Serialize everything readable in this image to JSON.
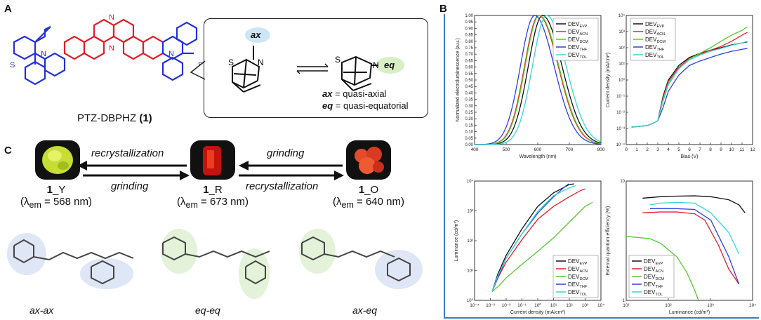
{
  "panels": {
    "A": "A",
    "B": "B",
    "C": "C"
  },
  "molecule": {
    "name": "PTZ-DBPHZ",
    "number": "(1)",
    "atoms": {
      "N": "N",
      "S": "S"
    }
  },
  "conformer_box": {
    "ax_tag": "ax",
    "eq_tag": "eq",
    "legend_ax_key": "ax",
    "legend_ax_text": "= quasi-axial",
    "legend_eq_key": "eq",
    "legend_eq_text": "= quasi-equatorial"
  },
  "charts": {
    "el_spectra": {
      "ylabel": "Normalized electroluminescence (a.u.)",
      "xlabel": "Wavelength (nm)",
      "xticks": [
        "400",
        "500",
        "600",
        "700",
        "800"
      ],
      "yticks": [
        "0.00",
        "0.05",
        "0.10",
        "0.15",
        "0.20",
        "0.25",
        "0.30",
        "0.35",
        "0.40",
        "0.45",
        "0.50",
        "0.55",
        "0.60",
        "0.65",
        "0.70",
        "0.75",
        "0.80",
        "0.85",
        "0.90",
        "0.95",
        "1.00"
      ]
    },
    "jv": {
      "ylabel": "Current density (mA/cm²)",
      "xlabel": "Bias (V)",
      "xticks": [
        "0",
        "1",
        "2",
        "3",
        "4",
        "5",
        "6",
        "7",
        "8",
        "9",
        "10",
        "11",
        "12"
      ],
      "yticks": [
        "10⁴",
        "10³",
        "10²",
        "10¹",
        "10⁰",
        "10⁻¹",
        "10⁻²",
        "10⁻³",
        "10⁻⁴"
      ]
    },
    "lj": {
      "ylabel": "Luminance (cd/m²)",
      "xlabel": "Current density (mA/cm²)",
      "xticks": [
        "10⁻⁴",
        "10⁻³",
        "10⁻²",
        "10⁻¹",
        "10⁰",
        "10¹",
        "10²",
        "10³",
        "10⁴"
      ],
      "yticks": [
        "10⁴",
        "10³",
        "10²",
        "10¹",
        "10⁰"
      ]
    },
    "eqe": {
      "ylabel": "External quantum efficiency (%)",
      "xlabel": "Luminance (cd/m²)",
      "xticks": [
        "10¹",
        "10²",
        "10³",
        "10⁴"
      ],
      "yticks": [
        "10",
        "1"
      ]
    },
    "legend": [
      {
        "base": "DEV",
        "sub": "EVP",
        "color": "#111111"
      },
      {
        "base": "DEV",
        "sub": "ACN",
        "color": "#e8202a"
      },
      {
        "base": "DEV",
        "sub": "DCM",
        "color": "#55cc2e"
      },
      {
        "base": "DEV",
        "sub": "THF",
        "color": "#2f3fe0"
      },
      {
        "base": "DEV",
        "sub": "TOL",
        "color": "#3ad6d6"
      }
    ]
  },
  "chart_data": [
    {
      "type": "line",
      "xlabel": "Wavelength (nm)",
      "ylabel": "Normalized electroluminescence (a.u.)",
      "xlim": [
        400,
        800
      ],
      "ylim": [
        0,
        1.0
      ],
      "series": [
        {
          "name": "DEV_EVP",
          "peak": 615
        },
        {
          "name": "DEV_ACN",
          "peak": 603
        },
        {
          "name": "DEV_DCM",
          "peak": 605
        },
        {
          "name": "DEV_THF",
          "peak": 590
        },
        {
          "name": "DEV_TOL",
          "peak": 628
        }
      ]
    },
    {
      "type": "line",
      "xlabel": "Bias (V)",
      "ylabel": "Current density (mA/cm²)",
      "xlim": [
        0,
        12
      ],
      "ylog": true,
      "ylim": [
        0.0001,
        10000
      ],
      "x": [
        0.5,
        1,
        2,
        2.5,
        3,
        3.5,
        4,
        5,
        6,
        7,
        8,
        9,
        10,
        11,
        11.5
      ],
      "series": [
        {
          "name": "DEV_EVP",
          "values": [
            0.0012,
            0.0013,
            0.0015,
            0.002,
            0.003,
            0.1,
            1,
            8,
            25,
            45,
            70,
            100,
            150,
            200,
            230
          ]
        },
        {
          "name": "DEV_ACN",
          "values": [
            0.0012,
            0.0013,
            0.0015,
            0.002,
            0.003,
            0.08,
            0.8,
            6,
            22,
            40,
            70,
            120,
            250,
            600,
            900
          ]
        },
        {
          "name": "DEV_DCM",
          "values": [
            0.0012,
            0.0013,
            0.0015,
            0.002,
            0.003,
            0.05,
            0.5,
            5,
            20,
            45,
            100,
            250,
            600,
            1200,
            2000
          ]
        },
        {
          "name": "DEV_THF",
          "values": [
            0.0012,
            0.0013,
            0.0015,
            0.002,
            0.003,
            0.02,
            0.2,
            2,
            8,
            15,
            25,
            40,
            60,
            80,
            90
          ]
        },
        {
          "name": "DEV_TOL",
          "values": [
            0.0012,
            0.0013,
            0.0015,
            0.002,
            0.003,
            0.06,
            0.6,
            5,
            18,
            35,
            60,
            90,
            140,
            200,
            250
          ]
        }
      ]
    },
    {
      "type": "line",
      "xlabel": "Current density (mA/cm²)",
      "ylabel": "Luminance (cd/m²)",
      "xlog": true,
      "ylog": true,
      "xlim": [
        0.0001,
        10000
      ],
      "ylim": [
        0.2,
        40000
      ],
      "series": [
        {
          "name": "DEV_EVP",
          "x": [
            0.0013,
            0.003,
            0.01,
            0.1,
            1,
            10,
            100,
            200
          ],
          "values": [
            0.5,
            3,
            20,
            300,
            3000,
            12000,
            28000,
            30000
          ]
        },
        {
          "name": "DEV_ACN",
          "x": [
            0.0013,
            0.003,
            0.01,
            0.1,
            1,
            10,
            100,
            500,
            1000
          ],
          "values": [
            0.5,
            2,
            10,
            100,
            800,
            3000,
            8000,
            15000,
            18000
          ]
        },
        {
          "name": "DEV_DCM",
          "x": [
            0.0013,
            0.003,
            0.01,
            0.1,
            1,
            10,
            100,
            1000,
            3000
          ],
          "values": [
            0.5,
            0.8,
            2,
            8,
            30,
            120,
            600,
            3000,
            4500
          ]
        },
        {
          "name": "DEV_THF",
          "x": [
            0.0013,
            0.003,
            0.01,
            0.1,
            1,
            10,
            50,
            90
          ],
          "values": [
            0.5,
            2,
            15,
            180,
            1500,
            8000,
            22000,
            30000
          ]
        },
        {
          "name": "DEV_TOL",
          "x": [
            0.0013,
            0.003,
            0.01,
            0.1,
            1,
            10,
            100,
            250
          ],
          "values": [
            0.5,
            2.5,
            15,
            180,
            1800,
            9000,
            20000,
            25000
          ]
        }
      ]
    },
    {
      "type": "line",
      "xlabel": "Luminance (cd/m²)",
      "ylabel": "External quantum efficiency (%)",
      "xlog": true,
      "ylog": true,
      "xlim": [
        10,
        50000
      ],
      "ylim": [
        1,
        20
      ],
      "series": [
        {
          "name": "DEV_EVP",
          "x": [
            30,
            100,
            300,
            1000,
            3000,
            10000,
            20000,
            30000
          ],
          "values": [
            13,
            13.5,
            13.7,
            13.8,
            13.5,
            12.5,
            11,
            9
          ]
        },
        {
          "name": "DEV_ACN",
          "x": [
            30,
            100,
            300,
            1000,
            2000,
            5000,
            10000,
            20000
          ],
          "values": [
            9,
            9.2,
            9.2,
            8.8,
            7.5,
            4,
            2.2,
            1.5
          ]
        },
        {
          "name": "DEV_DCM",
          "x": [
            10,
            50,
            100,
            300,
            600,
            1000,
            1300
          ],
          "values": [
            5,
            4.7,
            4.2,
            3,
            2,
            1.3,
            1
          ]
        },
        {
          "name": "DEV_THF",
          "x": [
            50,
            100,
            300,
            1000,
            3000,
            10000,
            20000
          ],
          "values": [
            10,
            10,
            10,
            9.8,
            7.5,
            3,
            1.5
          ]
        },
        {
          "name": "DEV_TOL",
          "x": [
            50,
            100,
            300,
            1000,
            3000,
            10000,
            20000
          ],
          "values": [
            11,
            11.5,
            11.7,
            11.5,
            9,
            5.5,
            3.2
          ]
        }
      ]
    }
  ],
  "arrows": {
    "y_to_r_top": "recrystallization",
    "y_to_r_bottom": "grinding",
    "r_to_o_top": "grinding",
    "r_to_o_bottom": "recrystallization"
  },
  "forms": [
    {
      "num": "1",
      "suffix": "_Y",
      "lambda_pre": "(λ",
      "lambda_sub": "em",
      "lambda_val": " = 568 nm)",
      "conformer": "ax-ax",
      "color": "#cfe23a"
    },
    {
      "num": "1",
      "suffix": "_R",
      "lambda_pre": "(λ",
      "lambda_sub": "em",
      "lambda_val": " = 673 nm)",
      "conformer": "eq-eq",
      "color": "#d11b12"
    },
    {
      "num": "1",
      "suffix": "_O",
      "lambda_pre": "(λ",
      "lambda_sub": "em",
      "lambda_val": " = 640 nm)",
      "conformer": "ax-eq",
      "color": "#e4412a"
    }
  ]
}
